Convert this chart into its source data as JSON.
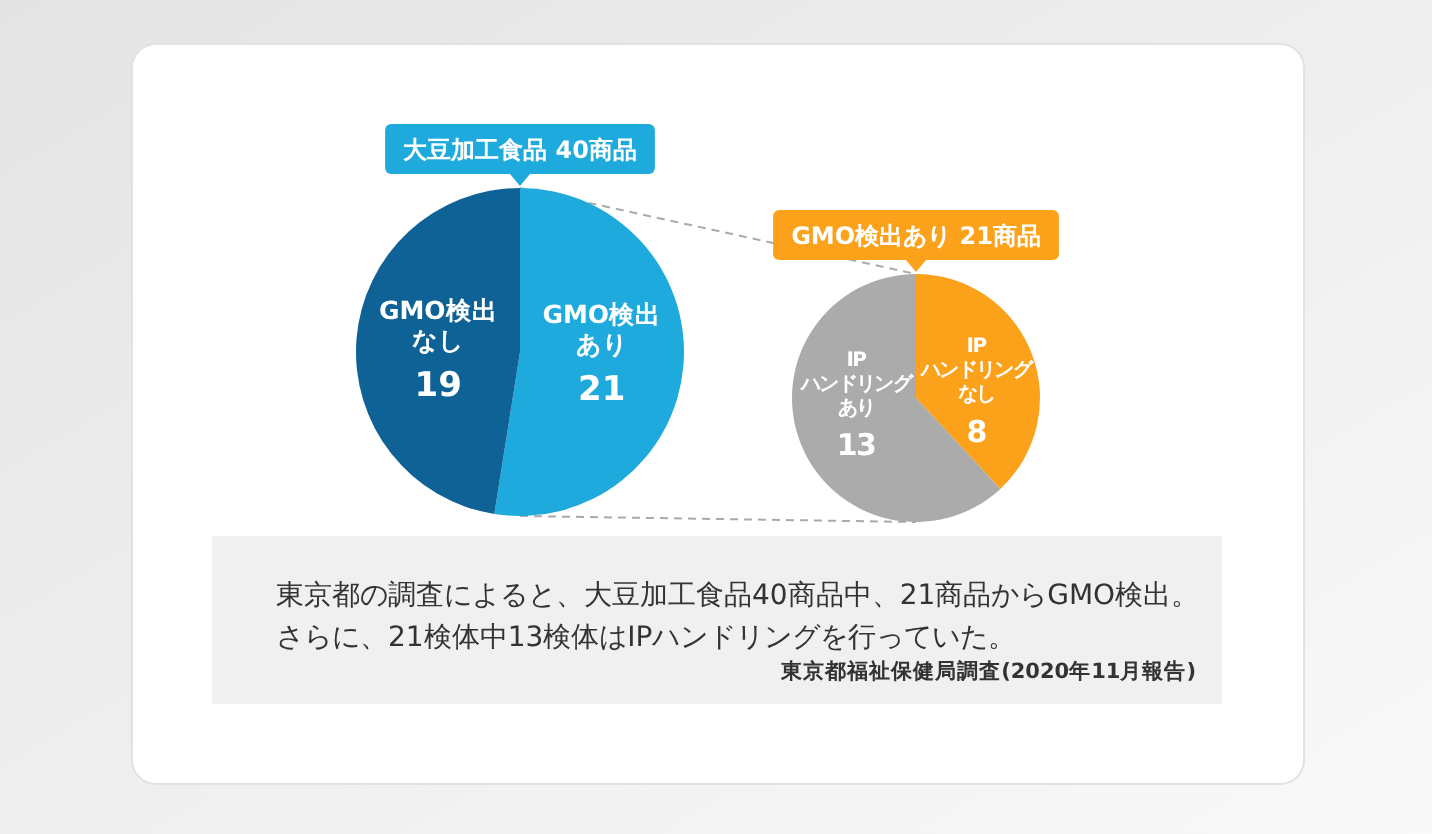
{
  "chart_data": [
    {
      "type": "pie",
      "title": "大豆加工食品 40商品",
      "categories": [
        "GMO検出あり",
        "GMO検出なし"
      ],
      "values": [
        21,
        19
      ],
      "colors": [
        "#1eaadc",
        "#0f6296"
      ],
      "data_labels": true
    },
    {
      "type": "pie",
      "title": "GMO検出あり 21商品",
      "categories": [
        "IPハンドリングなし",
        "IPハンドリングあり"
      ],
      "values": [
        8,
        13
      ],
      "colors": [
        "#fba11a",
        "#ababab"
      ],
      "data_labels": true
    },
    {
      "type": "other",
      "annotations": [
        "東京都の調査によると、大豆加工食品40商品中、21商品からGMO検出。",
        "さらに、21検体中13検体はIPハンドリングを行っていた。",
        "東京都福祉保健局調査(2020年11月報告)"
      ]
    }
  ]
}
